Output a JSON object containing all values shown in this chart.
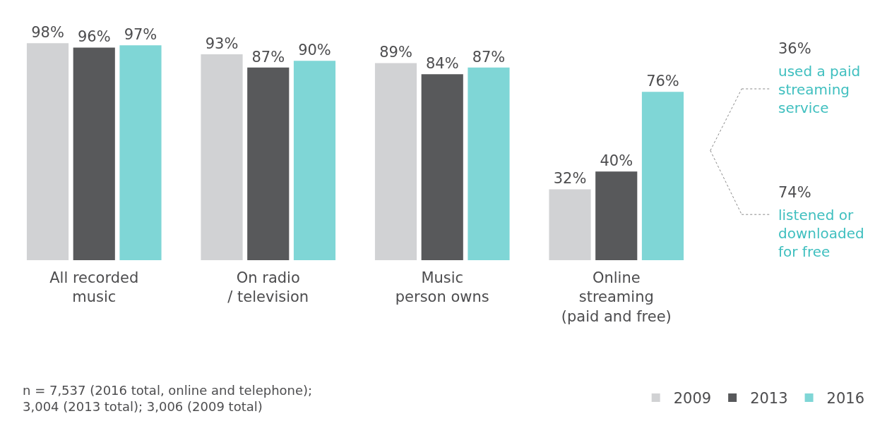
{
  "chart_data": {
    "type": "bar",
    "categories": [
      "All recorded\nmusic",
      "On radio\n/ television",
      "Music\nperson owns",
      "Online\nstreaming\n(paid and free)"
    ],
    "series": [
      {
        "name": "2009",
        "color": "#d1d2d4",
        "values": [
          98,
          93,
          89,
          32
        ],
        "value_labels": [
          "98%",
          "93%",
          "89%",
          "32%"
        ]
      },
      {
        "name": "2013",
        "color": "#58595b",
        "values": [
          96,
          87,
          84,
          40
        ],
        "value_labels": [
          "96%",
          "87%",
          "84%",
          "40%"
        ]
      },
      {
        "name": "2016",
        "color": "#7fd6d6",
        "values": [
          97,
          90,
          87,
          76
        ],
        "value_labels": [
          "97%",
          "90%",
          "87%",
          "76%"
        ]
      }
    ],
    "grid": false,
    "legend": "bottom right",
    "annotations": [
      "36%",
      "used a paid streaming service",
      "74%",
      "listened or downloaded for free",
      "n = 7,537 (2016 total, online and telephone); 3,004 (2013 total); 3,006 (2009 total)"
    ]
  }
}
